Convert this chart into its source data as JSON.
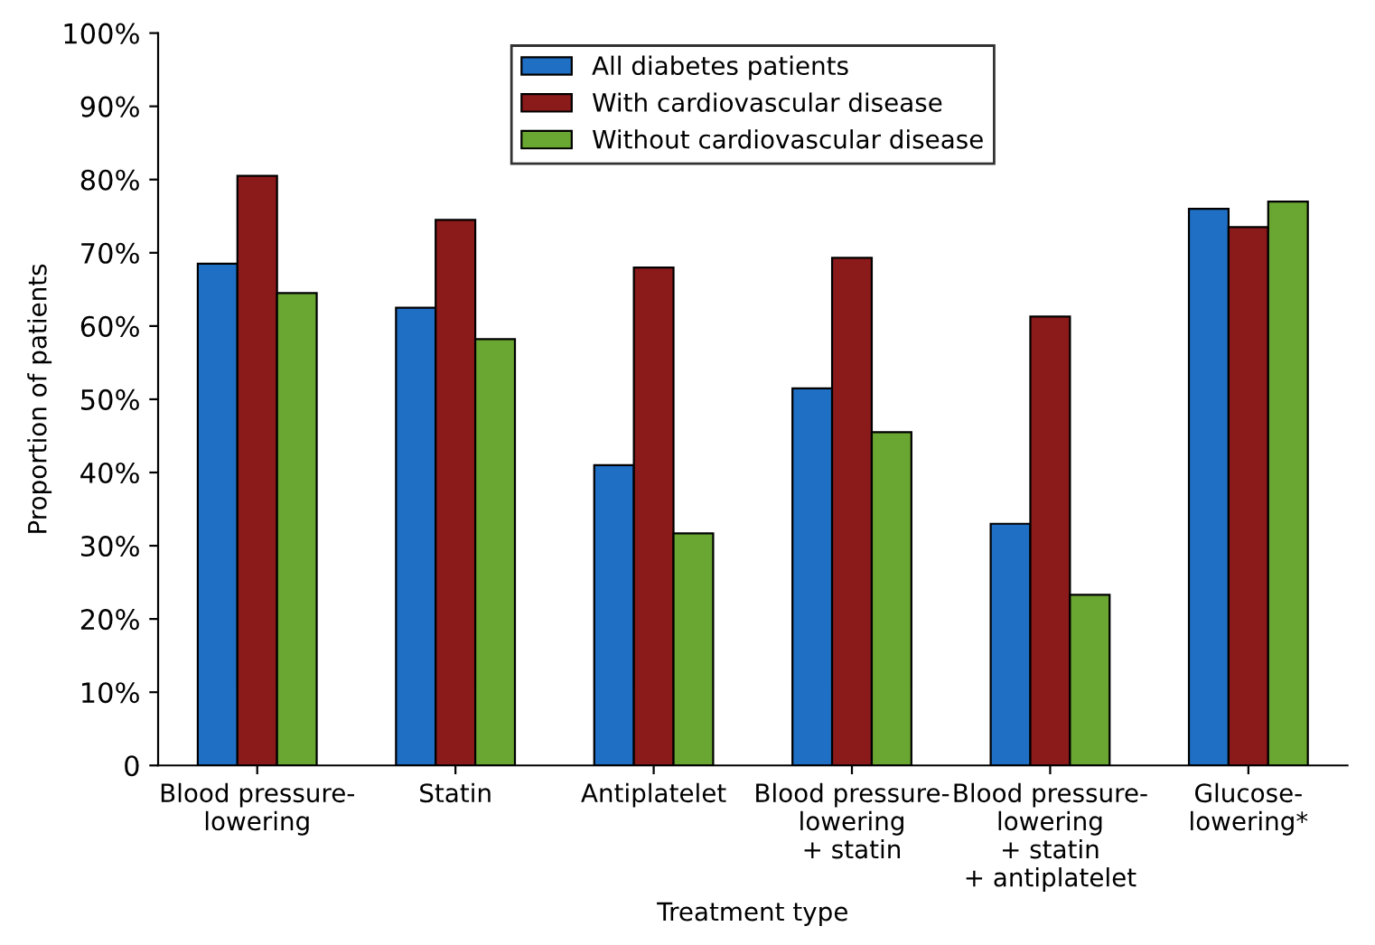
{
  "chart_data": {
    "type": "bar",
    "xlabel": "Treatment type",
    "ylabel": "Proportion of patients",
    "categories": [
      "Blood pressure-\nlowering",
      "Statin",
      "Antiplatelet",
      "Blood pressure-\nlowering\n+ statin",
      "Blood pressure-\nlowering\n+ statin\n+ antiplatelet",
      "Glucose-\nlowering*"
    ],
    "series": [
      {
        "name": "All diabetes patients",
        "color": "#1f6fc5",
        "values": [
          68.5,
          62.5,
          41,
          51.5,
          33,
          76
        ]
      },
      {
        "name": "With cardiovascular disease",
        "color": "#8b1a1a",
        "values": [
          80.5,
          74.5,
          68,
          69.3,
          61.3,
          73.5
        ]
      },
      {
        "name": "Without cardiovascular disease",
        "color": "#6aa632",
        "values": [
          64.5,
          58.2,
          31.7,
          45.5,
          23.3,
          77
        ]
      }
    ],
    "ylim": [
      0,
      100
    ],
    "yticks": [
      0,
      {
        "value": 10,
        "label": "10%"
      },
      {
        "value": 20,
        "label": "20%"
      },
      {
        "value": 30,
        "label": "30%"
      },
      {
        "value": 40,
        "label": "40%"
      },
      {
        "value": 50,
        "label": "50%"
      },
      {
        "value": 60,
        "label": "60%"
      },
      {
        "value": 70,
        "label": "70%"
      },
      {
        "value": 80,
        "label": "80%"
      },
      {
        "value": 90,
        "label": "90%"
      },
      {
        "value": 100,
        "label": "100%"
      }
    ],
    "grid": false,
    "legend": "top"
  }
}
